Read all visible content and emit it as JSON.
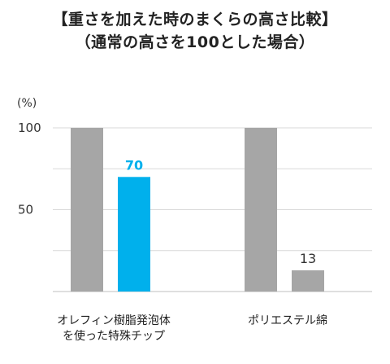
{
  "title_line1": "【重さを加えた時のまくらの高さ比較】",
  "title_line2": "（通常の高さを100とした場合）",
  "y_unit": "(%)",
  "colors": {
    "reference": "#a6a6a6",
    "highlight": "#00b0ec",
    "other": "#a6a6a6"
  },
  "chart_data": {
    "type": "bar",
    "categories": [
      [
        "オレフィン樹脂発泡体",
        "を使った特殊チップ"
      ],
      [
        "ポリエステル綿"
      ]
    ],
    "series": [
      {
        "values": [
          100,
          100
        ]
      },
      {
        "values": [
          70,
          13
        ]
      }
    ],
    "data_labels": [
      "70",
      "13"
    ],
    "ylim": [
      0,
      100
    ],
    "yticks": [
      50,
      100
    ],
    "grid": true,
    "legend": "none"
  }
}
